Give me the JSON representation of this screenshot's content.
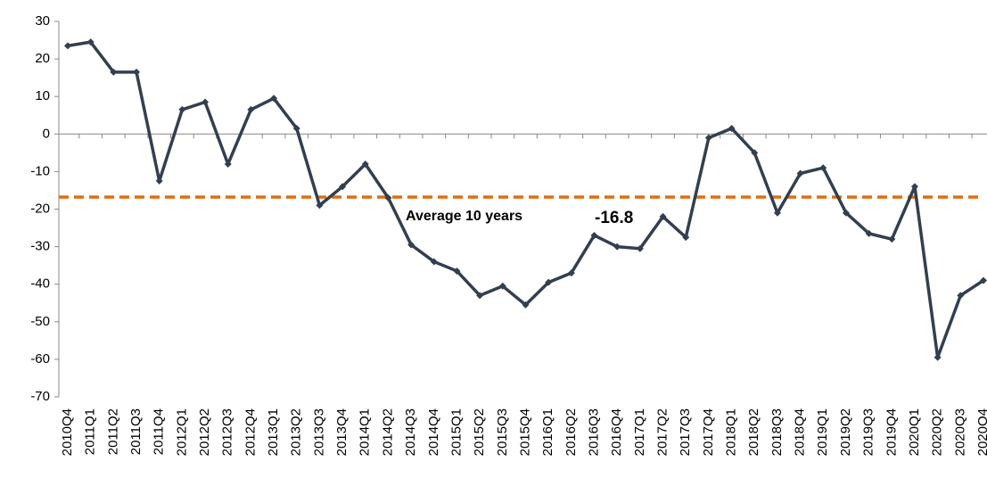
{
  "chart_data": {
    "type": "line",
    "categories": [
      "2010Q4",
      "2011Q1",
      "2011Q2",
      "2011Q3",
      "2011Q4",
      "2012Q1",
      "2012Q2",
      "2012Q3",
      "2012Q4",
      "2013Q1",
      "2013Q2",
      "2013Q3",
      "2013Q4",
      "2014Q1",
      "2014Q2",
      "2014Q3",
      "2014Q4",
      "2015Q1",
      "2015Q2",
      "2015Q3",
      "2015Q4",
      "2016Q1",
      "2016Q2",
      "2016Q3",
      "2016Q4",
      "2017Q1",
      "2017Q2",
      "2017Q3",
      "2017Q4",
      "2018Q1",
      "2018Q2",
      "2018Q3",
      "2018Q4",
      "2019Q1",
      "2019Q2",
      "2019Q3",
      "2019Q4",
      "2020Q1",
      "2020Q2",
      "2020Q3",
      "2020Q4"
    ],
    "series": [
      {
        "color": "#333f50",
        "values": [
          23.5,
          24.5,
          16.5,
          16.5,
          -12.5,
          6.5,
          8.5,
          -8,
          6.5,
          9.5,
          1.5,
          -19,
          -14,
          -8,
          -17,
          -29.5,
          -34,
          -36.5,
          -43,
          -40.5,
          -45.5,
          -39.5,
          -37,
          -27,
          -30,
          -30.5,
          -22,
          -27.5,
          -1,
          1.5,
          -5,
          -21,
          -10.5,
          -9,
          -21,
          -26.5,
          -28,
          -14,
          -59.5,
          -43,
          -39
        ]
      }
    ],
    "average": {
      "label": "Average 10 years",
      "value": -16.8,
      "color": "#e46c0a"
    },
    "ylim": [
      -70,
      30
    ],
    "yticks": [
      -70,
      -60,
      -50,
      -40,
      -30,
      -20,
      -10,
      0,
      10,
      20,
      30
    ],
    "grid": false
  }
}
